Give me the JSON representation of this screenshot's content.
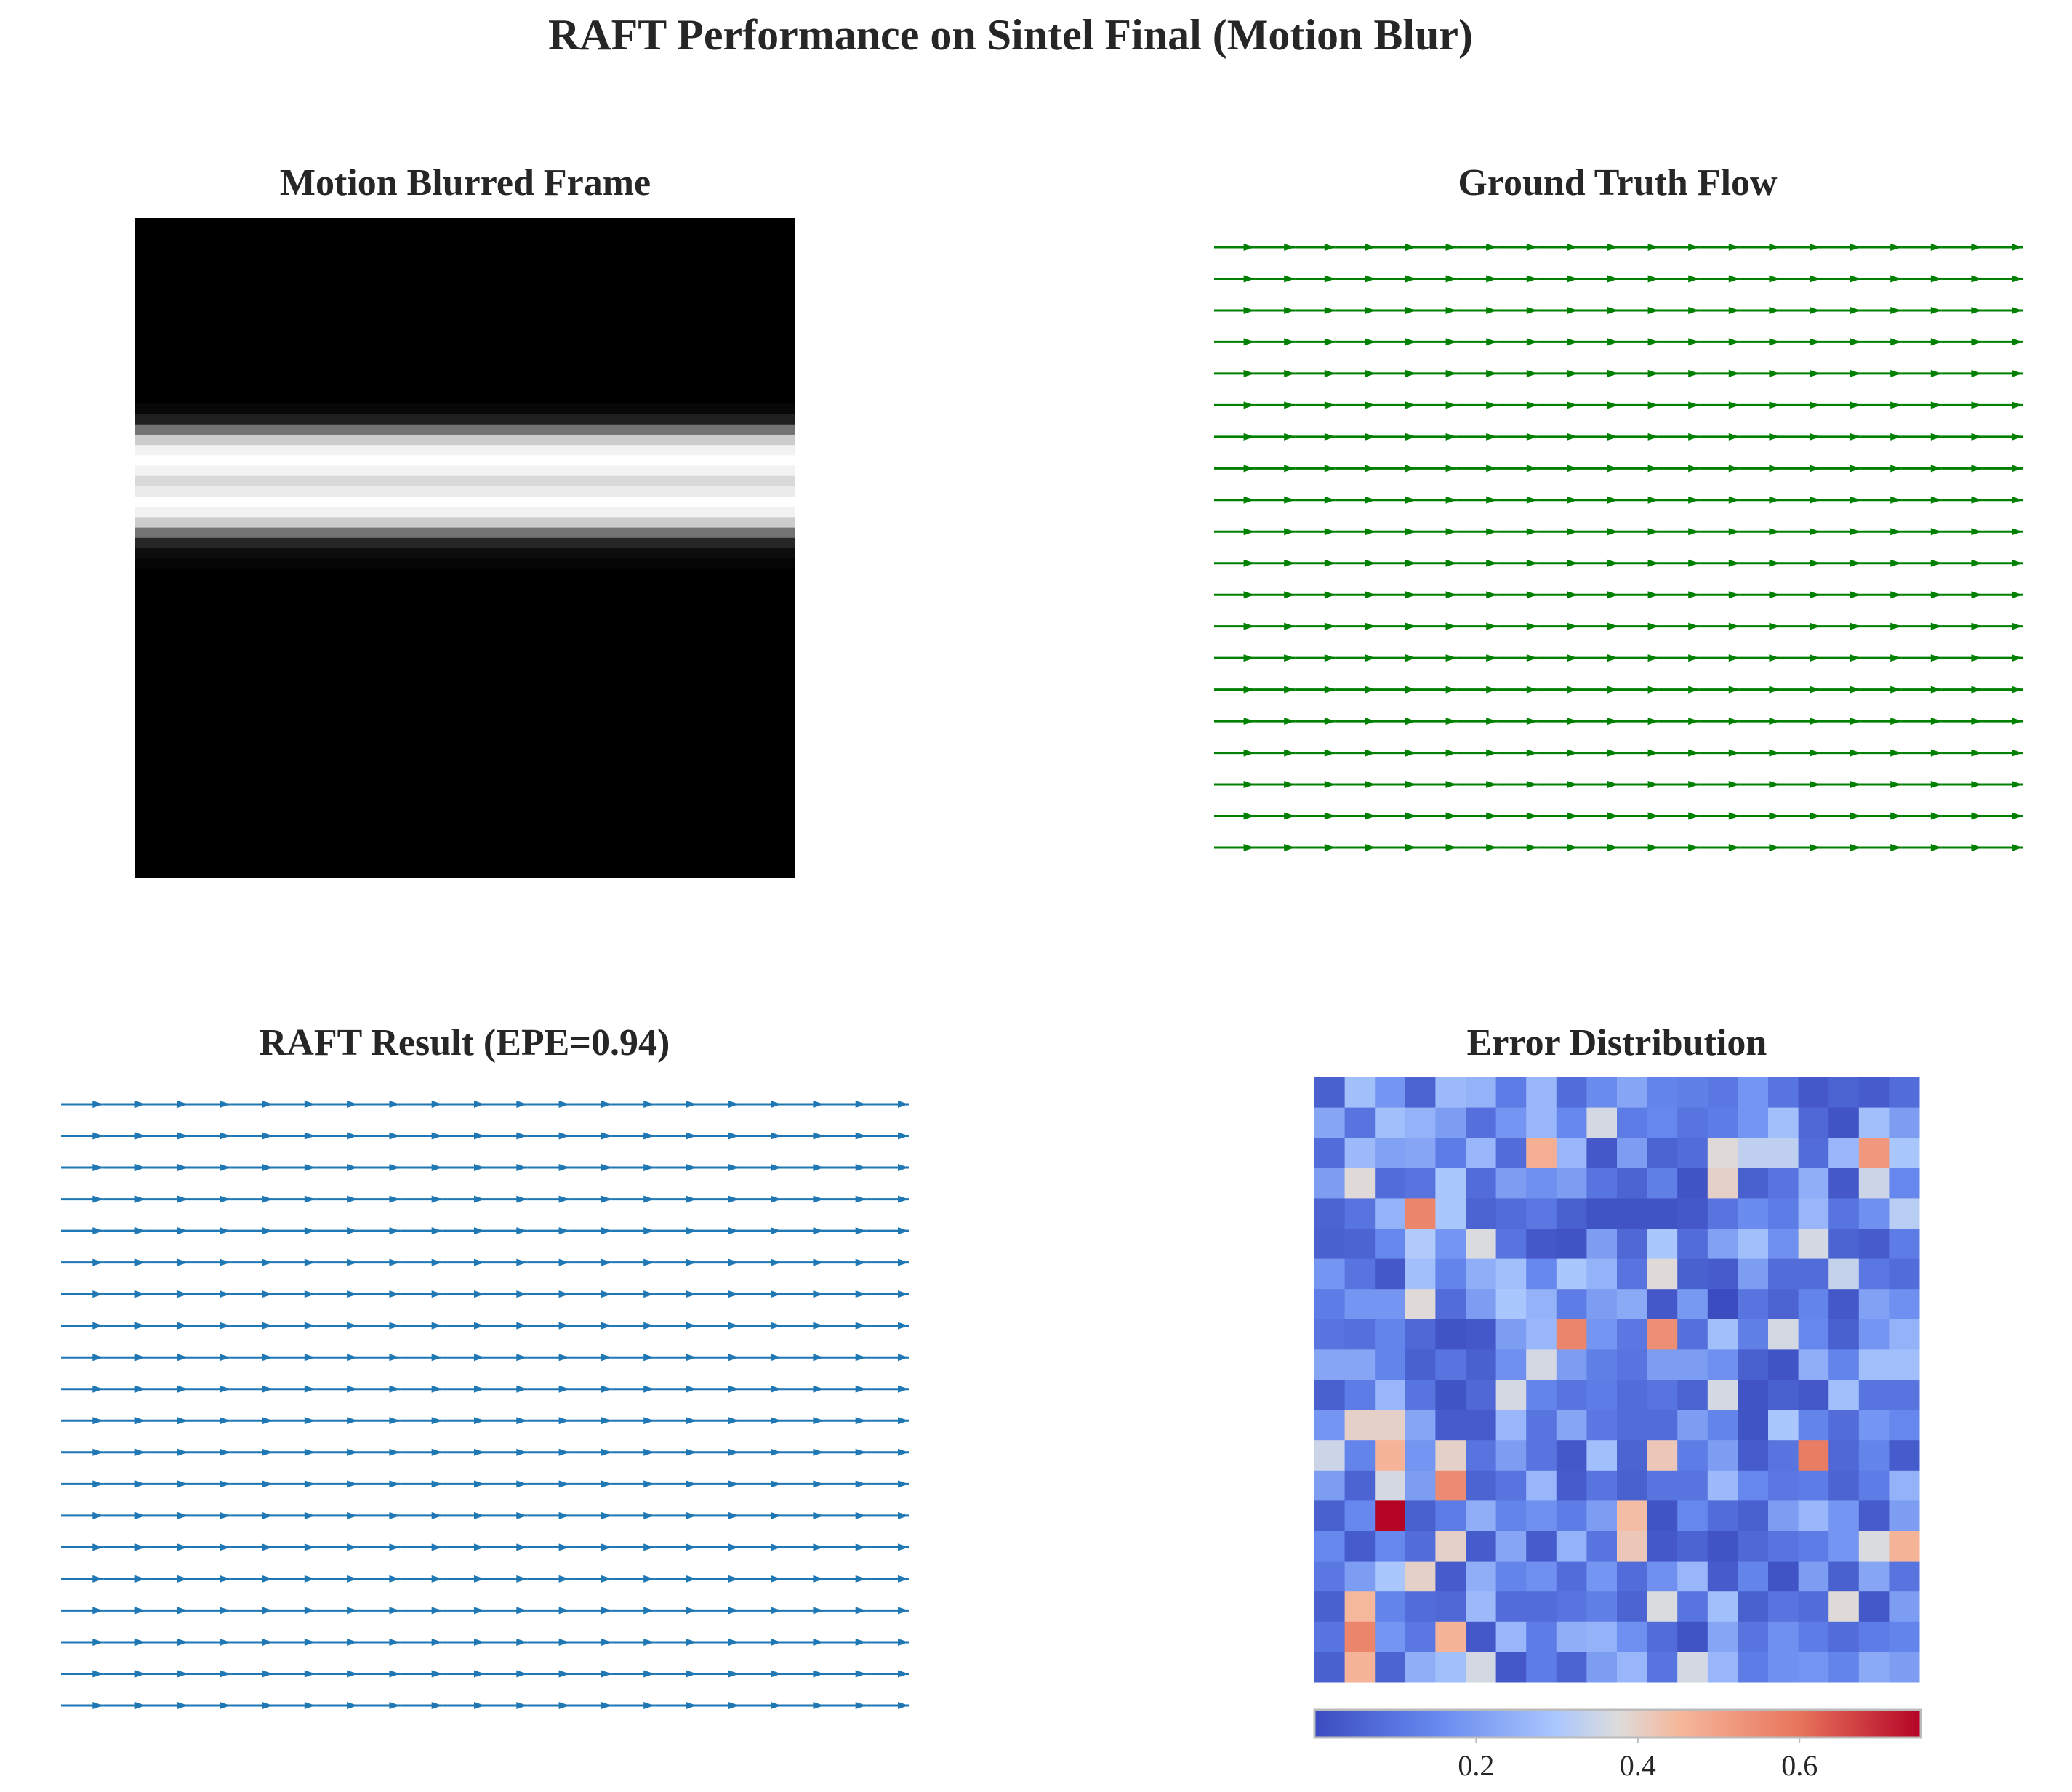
{
  "figure": {
    "title": "RAFT Performance on Sintel Final (Motion Blur)"
  },
  "chart_data": [
    {
      "type": "heatmap",
      "title": "Motion Blurred Frame",
      "colormap": "gray",
      "rows": 64,
      "cols": 64,
      "row_profile": [
        0,
        0,
        0,
        0,
        0,
        0,
        0,
        0,
        0,
        0,
        0,
        0,
        0,
        0,
        0,
        0,
        0,
        0,
        0.03,
        0.12,
        0.45,
        0.8,
        0.95,
        1,
        0.95,
        0.85,
        0.92,
        1,
        0.95,
        0.8,
        0.45,
        0.15,
        0.05,
        0.02,
        0,
        0,
        0,
        0,
        0,
        0,
        0,
        0,
        0,
        0,
        0,
        0,
        0,
        0,
        0,
        0,
        0,
        0,
        0,
        0,
        0,
        0,
        0,
        0,
        0,
        0,
        0,
        0,
        0,
        0
      ]
    },
    {
      "type": "quiver",
      "title": "Ground Truth Flow",
      "color": "#008000",
      "rows": 20,
      "cols": 20,
      "u": 1,
      "v": 0
    },
    {
      "type": "quiver",
      "title": "RAFT Result (EPE=0.94)",
      "color": "#1f77b4",
      "rows": 20,
      "cols": 20,
      "u": 1,
      "v": 0
    },
    {
      "type": "heatmap",
      "title": "Error Distribution",
      "colormap": "coolwarm",
      "vmin": 0,
      "vmax": 0.75,
      "colorbar_ticks": [
        0.2,
        0.4,
        0.6
      ],
      "colorbar_tick_labels": [
        "0.2",
        "0.4",
        "0.6"
      ],
      "values": [
        [
          0.05,
          0.28,
          0.18,
          0.06,
          0.27,
          0.25,
          0.12,
          0.26,
          0.08,
          0.16,
          0.22,
          0.14,
          0.13,
          0.11,
          0.18,
          0.1,
          0.03,
          0.06,
          0.04,
          0.08
        ],
        [
          0.22,
          0.1,
          0.28,
          0.25,
          0.2,
          0.09,
          0.18,
          0.26,
          0.15,
          0.36,
          0.12,
          0.15,
          0.1,
          0.12,
          0.18,
          0.28,
          0.07,
          0.02,
          0.28,
          0.2
        ],
        [
          0.08,
          0.27,
          0.21,
          0.22,
          0.12,
          0.26,
          0.08,
          0.47,
          0.26,
          0.03,
          0.2,
          0.06,
          0.08,
          0.38,
          0.33,
          0.33,
          0.08,
          0.26,
          0.52,
          0.3
        ],
        [
          0.2,
          0.38,
          0.08,
          0.1,
          0.3,
          0.08,
          0.2,
          0.17,
          0.2,
          0.1,
          0.06,
          0.13,
          0.02,
          0.4,
          0.05,
          0.1,
          0.24,
          0.03,
          0.35,
          0.15
        ],
        [
          0.06,
          0.1,
          0.25,
          0.56,
          0.3,
          0.06,
          0.08,
          0.11,
          0.05,
          0.02,
          0.02,
          0.02,
          0.03,
          0.1,
          0.16,
          0.12,
          0.26,
          0.1,
          0.17,
          0.32
        ],
        [
          0.05,
          0.06,
          0.15,
          0.31,
          0.18,
          0.37,
          0.1,
          0.03,
          0.02,
          0.2,
          0.07,
          0.3,
          0.08,
          0.21,
          0.28,
          0.17,
          0.36,
          0.06,
          0.04,
          0.12
        ],
        [
          0.18,
          0.1,
          0.03,
          0.28,
          0.14,
          0.24,
          0.28,
          0.15,
          0.3,
          0.25,
          0.1,
          0.38,
          0.05,
          0.04,
          0.2,
          0.08,
          0.08,
          0.34,
          0.11,
          0.08
        ],
        [
          0.12,
          0.18,
          0.18,
          0.38,
          0.08,
          0.2,
          0.3,
          0.25,
          0.12,
          0.2,
          0.23,
          0.03,
          0.19,
          0.0,
          0.1,
          0.06,
          0.14,
          0.03,
          0.21,
          0.17
        ],
        [
          0.1,
          0.09,
          0.14,
          0.07,
          0.02,
          0.03,
          0.2,
          0.26,
          0.56,
          0.18,
          0.11,
          0.54,
          0.09,
          0.28,
          0.13,
          0.36,
          0.15,
          0.05,
          0.18,
          0.25
        ],
        [
          0.22,
          0.22,
          0.14,
          0.05,
          0.1,
          0.05,
          0.17,
          0.36,
          0.2,
          0.13,
          0.1,
          0.2,
          0.2,
          0.17,
          0.05,
          0.02,
          0.24,
          0.14,
          0.28,
          0.28
        ],
        [
          0.05,
          0.12,
          0.26,
          0.1,
          0.02,
          0.07,
          0.36,
          0.14,
          0.1,
          0.12,
          0.08,
          0.1,
          0.06,
          0.36,
          0.02,
          0.05,
          0.03,
          0.28,
          0.1,
          0.1
        ],
        [
          0.18,
          0.4,
          0.4,
          0.22,
          0.04,
          0.04,
          0.26,
          0.1,
          0.22,
          0.11,
          0.08,
          0.08,
          0.2,
          0.14,
          0.02,
          0.3,
          0.14,
          0.08,
          0.18,
          0.15
        ],
        [
          0.35,
          0.14,
          0.46,
          0.18,
          0.4,
          0.1,
          0.2,
          0.1,
          0.03,
          0.28,
          0.06,
          0.42,
          0.12,
          0.2,
          0.04,
          0.1,
          0.58,
          0.07,
          0.14,
          0.04
        ],
        [
          0.2,
          0.06,
          0.36,
          0.2,
          0.55,
          0.06,
          0.1,
          0.26,
          0.04,
          0.1,
          0.05,
          0.1,
          0.1,
          0.27,
          0.15,
          0.11,
          0.12,
          0.06,
          0.12,
          0.25
        ],
        [
          0.05,
          0.15,
          0.75,
          0.05,
          0.12,
          0.24,
          0.14,
          0.17,
          0.12,
          0.2,
          0.44,
          0.02,
          0.15,
          0.08,
          0.05,
          0.2,
          0.26,
          0.18,
          0.04,
          0.2
        ],
        [
          0.15,
          0.04,
          0.15,
          0.08,
          0.4,
          0.04,
          0.22,
          0.04,
          0.25,
          0.1,
          0.42,
          0.03,
          0.06,
          0.02,
          0.07,
          0.1,
          0.12,
          0.18,
          0.37,
          0.46
        ],
        [
          0.11,
          0.2,
          0.3,
          0.4,
          0.04,
          0.24,
          0.14,
          0.17,
          0.08,
          0.18,
          0.08,
          0.17,
          0.26,
          0.04,
          0.14,
          0.02,
          0.2,
          0.05,
          0.22,
          0.1
        ],
        [
          0.05,
          0.45,
          0.14,
          0.08,
          0.07,
          0.27,
          0.08,
          0.08,
          0.1,
          0.13,
          0.06,
          0.37,
          0.1,
          0.28,
          0.05,
          0.1,
          0.08,
          0.38,
          0.03,
          0.2
        ],
        [
          0.1,
          0.56,
          0.18,
          0.11,
          0.46,
          0.03,
          0.26,
          0.12,
          0.24,
          0.25,
          0.17,
          0.08,
          0.02,
          0.22,
          0.1,
          0.17,
          0.12,
          0.08,
          0.12,
          0.14
        ],
        [
          0.05,
          0.46,
          0.06,
          0.24,
          0.28,
          0.36,
          0.03,
          0.12,
          0.06,
          0.2,
          0.26,
          0.1,
          0.36,
          0.26,
          0.12,
          0.17,
          0.18,
          0.14,
          0.23,
          0.2
        ]
      ]
    }
  ]
}
